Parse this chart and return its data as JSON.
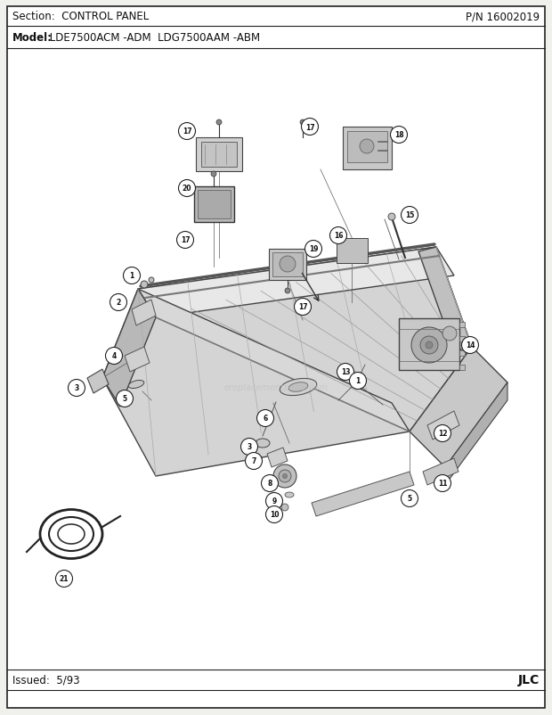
{
  "title_section_left": "Section:  CONTROL PANEL",
  "part_number": "P/N 16002019",
  "model_bold": "Model:",
  "model_rest": " LDE7500ACM -ADM  LDG7500AAM -ABM",
  "issued": "Issued:  5/93",
  "jlc": "JLC",
  "bg_color": "#f0f0ec",
  "inner_bg": "#ffffff",
  "border_color": "#222222",
  "text_color": "#111111",
  "fig_width": 6.2,
  "fig_height": 8.03,
  "dpi": 100
}
